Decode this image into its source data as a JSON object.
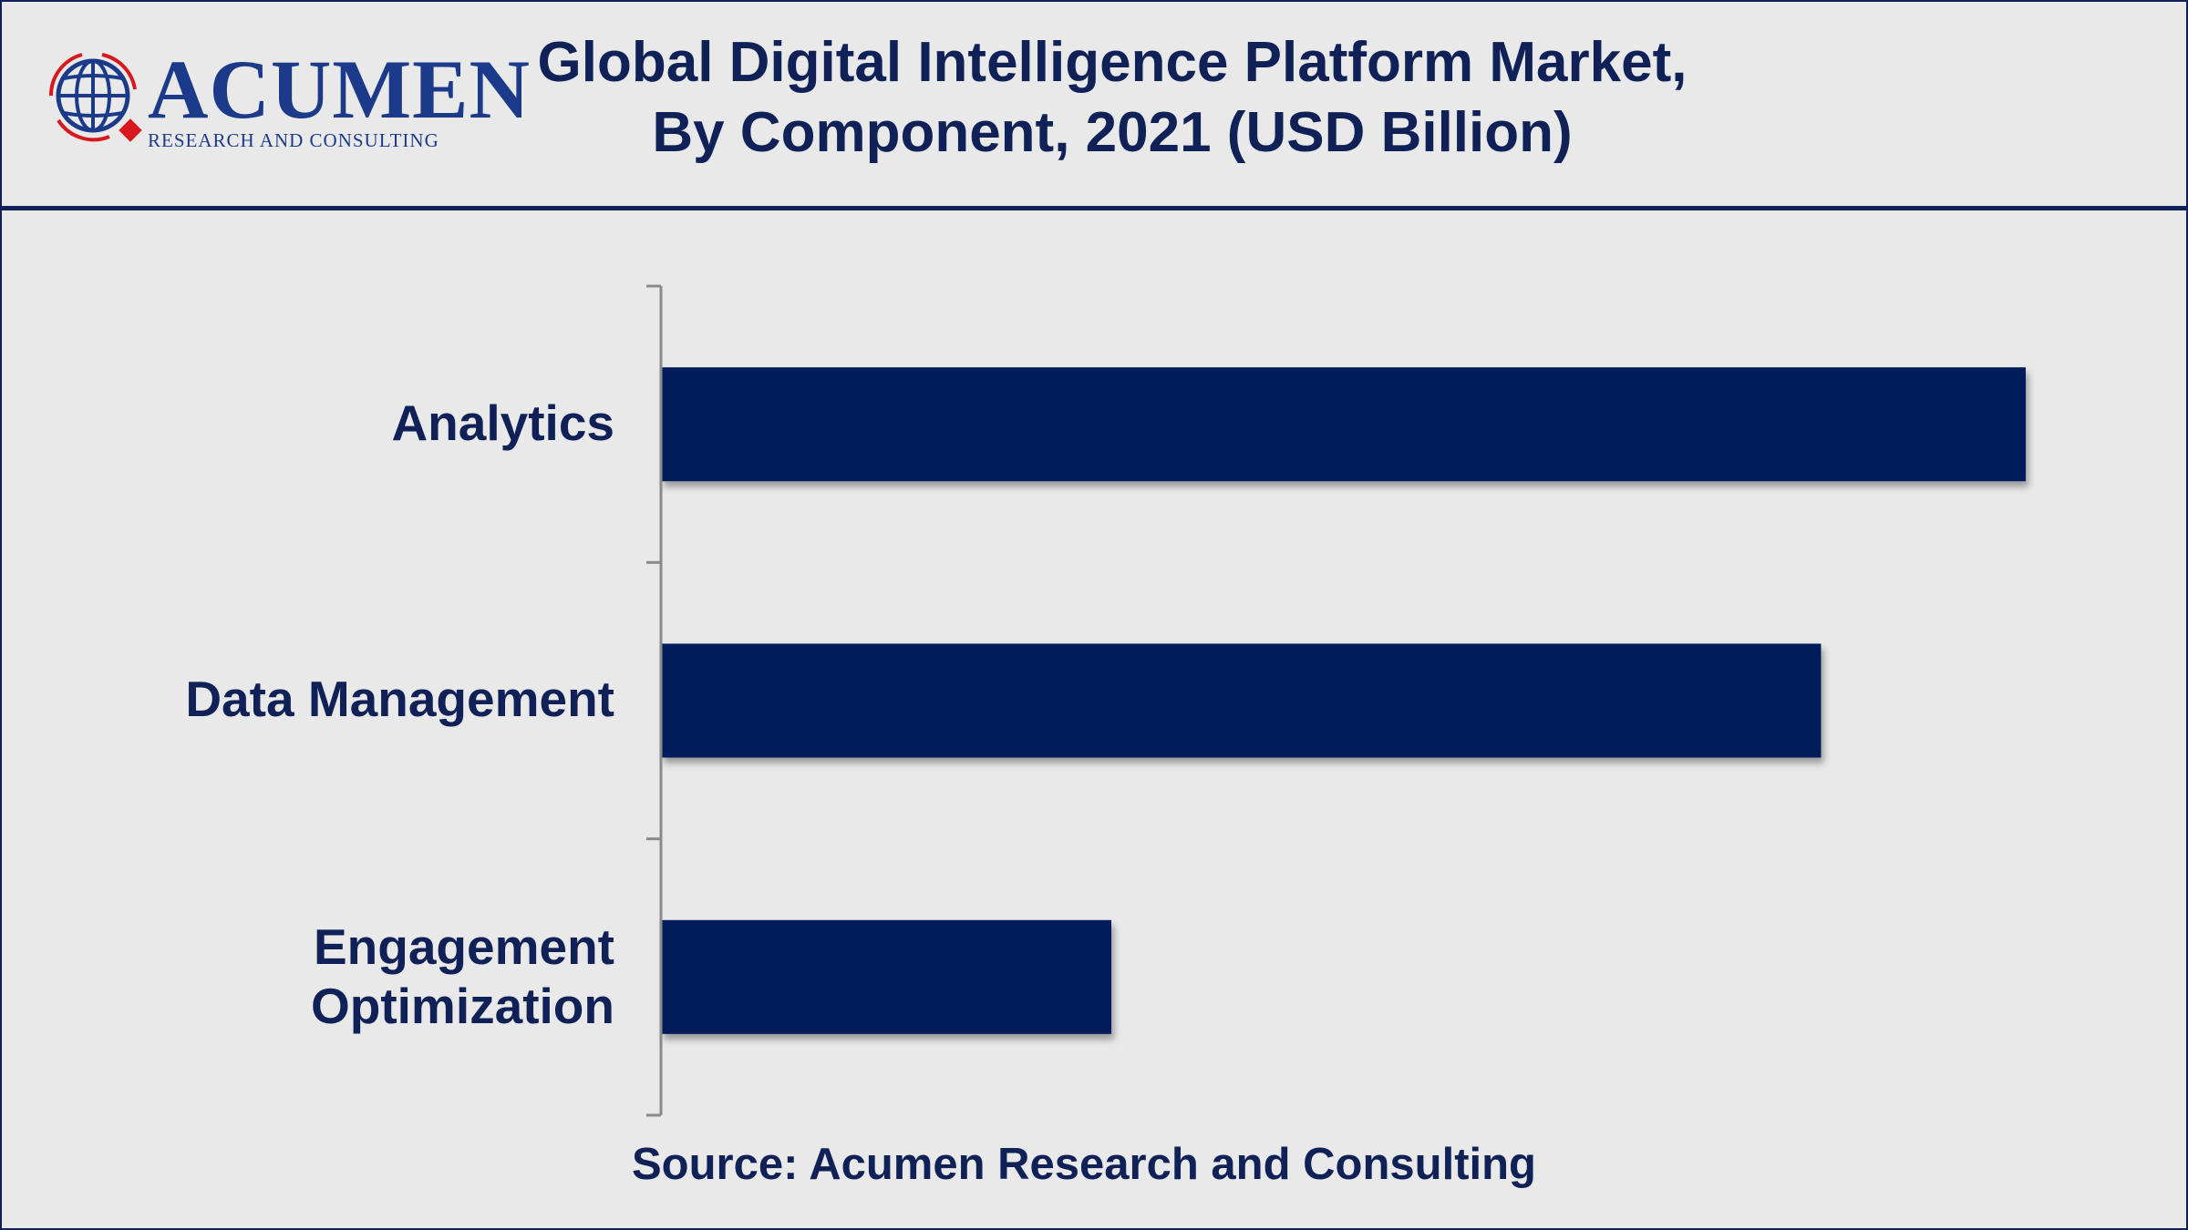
{
  "logo": {
    "brand": "ACUMEN",
    "tagline": "RESEARCH AND CONSULTING"
  },
  "header": {
    "title_line1": "Global Digital Intelligence Platform Market,",
    "title_line2": "By Component, 2021 (USD Billion)"
  },
  "chart_data": {
    "type": "bar",
    "orientation": "horizontal",
    "title": "Global Digital Intelligence Platform Market, By Component, 2021 (USD Billion)",
    "categories": [
      "Analytics",
      "Data Management",
      "Engagement Optimization"
    ],
    "values": [
      100,
      85,
      33
    ],
    "value_note": "relative bar lengths (largest = 100); no value axis or data labels are printed",
    "xlabel": "",
    "ylabel": "",
    "xlim": [
      0,
      108
    ],
    "grid": false,
    "legend": "none",
    "bar_color": "#001c5a"
  },
  "footer": {
    "source": "Source: Acumen Research and Consulting"
  },
  "colors": {
    "navy": "#0f2156",
    "bar": "#001c5a",
    "logo_red": "#d7181f",
    "logo_blue": "#1b3a8a",
    "background": "#e9e9e9"
  }
}
